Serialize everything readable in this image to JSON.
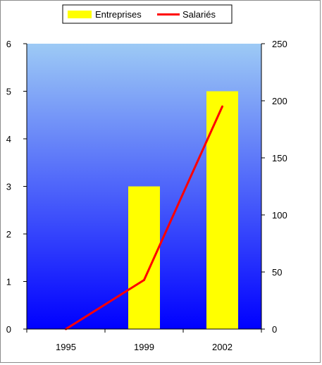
{
  "chart_data": {
    "type": "bar",
    "categories": [
      "1995",
      "1999",
      "2002"
    ],
    "series": [
      {
        "name": "Entreprises",
        "kind": "bar",
        "axis": "left",
        "values": [
          0,
          3,
          5
        ],
        "color": "#ffff00"
      },
      {
        "name": "Salariés",
        "kind": "line",
        "axis": "right",
        "values": [
          0,
          43,
          195
        ],
        "color": "#ff0000"
      }
    ],
    "y_left": {
      "min": 0,
      "max": 6,
      "ticks": [
        "0",
        "1",
        "2",
        "3",
        "4",
        "5",
        "6"
      ]
    },
    "y_right": {
      "min": 0,
      "max": 250,
      "ticks": [
        "0",
        "50",
        "100",
        "150",
        "200",
        "250"
      ]
    },
    "title": "",
    "xlabel": "",
    "ylabel": "",
    "legend_position": "top",
    "grid": false,
    "plot_gradient": {
      "top": "#9dcaf5",
      "bottom": "#0000ff"
    }
  }
}
